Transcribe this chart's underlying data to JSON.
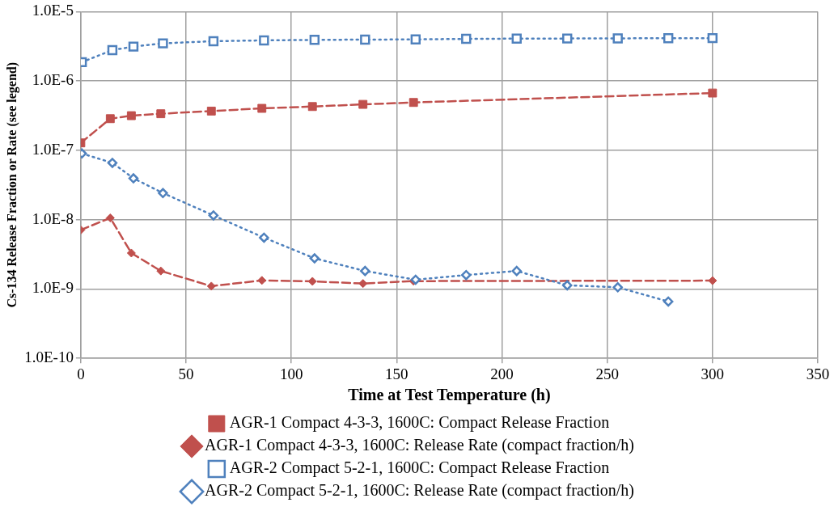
{
  "chart_data": {
    "type": "line",
    "xlabel": "Time at Test Temperature (h)",
    "ylabel": "Cs-134 Release Fraction or Rate (see legend)",
    "log": "y",
    "grid": true,
    "legend": "bottom",
    "xlim": [
      0,
      350
    ],
    "xticks": [
      0,
      50,
      100,
      150,
      200,
      250,
      300,
      350
    ],
    "ylim": [
      1e-10,
      1e-05
    ],
    "yticks": [
      {
        "value": 1e-10,
        "label": "1.0E-10"
      },
      {
        "value": 1e-09,
        "label": "1.0E-9"
      },
      {
        "value": 1e-08,
        "label": "1.0E-8"
      },
      {
        "value": 1e-07,
        "label": "1.0E-7"
      },
      {
        "value": 1e-06,
        "label": "1.0E-6"
      },
      {
        "value": 1e-05,
        "label": "1.0E-5"
      }
    ],
    "series": [
      {
        "name": "AGR-1 Compact 4-3-3, 1600C: Compact Release Fraction",
        "color": "#c0504d",
        "marker": "square",
        "line_style": "dashed",
        "x": [
          0,
          14,
          24,
          38,
          62,
          86,
          110,
          134,
          158,
          300
        ],
        "values": [
          1.28e-07,
          2.86e-07,
          3.16e-07,
          3.37e-07,
          3.68e-07,
          4.03e-07,
          4.28e-07,
          4.6e-07,
          4.9e-07,
          6.7e-07
        ]
      },
      {
        "name": "AGR-1 Compact 4-3-3, 1600C: Release Rate (compact fraction/h)",
        "color": "#c0504d",
        "marker": "diamond",
        "line_style": "dashed",
        "x": [
          0,
          14,
          24,
          38,
          62,
          86,
          110,
          134,
          158,
          300
        ],
        "values": [
          7.1e-09,
          1.06e-08,
          3.3e-09,
          1.82e-09,
          1.1e-09,
          1.33e-09,
          1.29e-09,
          1.2e-09,
          1.3e-09,
          1.32e-09
        ]
      },
      {
        "name": "AGR-2 Compact 5-2-1, 1600C: Compact Release Fraction",
        "color": "#4f81bd",
        "marker": "square",
        "line_style": "dotted",
        "x": [
          0.5,
          15,
          25,
          39,
          63,
          87,
          111,
          135,
          159,
          183,
          207,
          231,
          255,
          279,
          300
        ],
        "values": [
          1.87e-06,
          2.79e-06,
          3.13e-06,
          3.49e-06,
          3.75e-06,
          3.85e-06,
          3.92e-06,
          3.95e-06,
          3.98e-06,
          4.05e-06,
          4.08e-06,
          4.1e-06,
          4.12e-06,
          4.14e-06,
          4.15e-06
        ]
      },
      {
        "name": "AGR-2 Compact 5-2-1, 1600C: Release Rate (compact fraction/h)",
        "color": "#4f81bd",
        "marker": "diamond",
        "line_style": "dotted",
        "x": [
          0.5,
          15,
          25,
          39,
          63,
          87,
          111,
          135,
          159,
          183,
          207,
          231,
          255,
          279
        ],
        "values": [
          9e-08,
          6.6e-08,
          3.95e-08,
          2.42e-08,
          1.15e-08,
          5.5e-09,
          2.77e-09,
          1.82e-09,
          1.36e-09,
          1.59e-09,
          1.82e-09,
          1.13e-09,
          1.06e-09,
          6.6e-10
        ]
      }
    ]
  }
}
